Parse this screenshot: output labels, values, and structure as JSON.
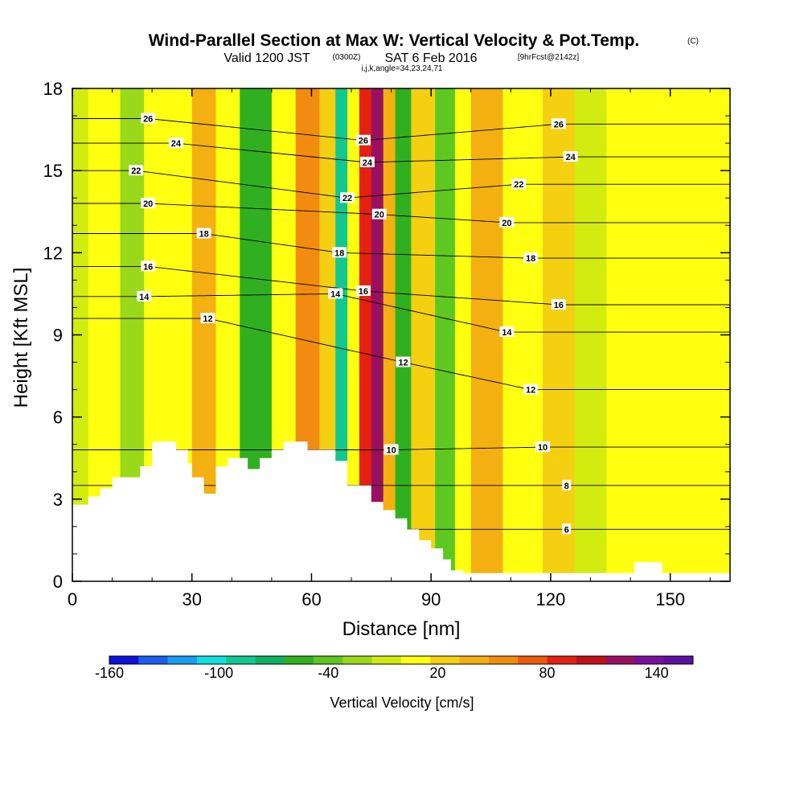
{
  "chart_data": {
    "type": "heatmap",
    "title": "Wind-Parallel Section at Max W: Vertical Velocity & Pot.Temp.",
    "title_mark": "(C)",
    "subtitle_valid": "Valid 1200 JST",
    "subtitle_utc": "(0300Z)",
    "subtitle_date": "SAT 6 Feb 2016",
    "subtitle_fcst": "[9hrFcst@2142z]",
    "subtitle_indices": "i,j,k,angle=34,23,24,71",
    "xlabel": "Distance [nm]",
    "ylabel": "Height [Kft MSL]",
    "xlim": [
      0,
      165
    ],
    "ylim": [
      0,
      18
    ],
    "x_ticks": [
      0,
      30,
      60,
      90,
      120,
      150
    ],
    "y_ticks": [
      0,
      3,
      6,
      9,
      12,
      15,
      18
    ],
    "colorbar": {
      "title": "Vertical Velocity [cm/s]",
      "tick_labels": [
        "-160",
        "-100",
        "-40",
        "20",
        "80",
        "140"
      ],
      "tick_values": [
        -160,
        -100,
        -40,
        20,
        80,
        140
      ],
      "range": [
        -160,
        160
      ],
      "colors": [
        "#1010e0",
        "#1a5cf0",
        "#1a9cf0",
        "#10e0e0",
        "#10c890",
        "#10b060",
        "#30b020",
        "#5ec820",
        "#9ad81a",
        "#d2ec10",
        "#ffff10",
        "#f4d010",
        "#f4b010",
        "#f28c10",
        "#ee5a10",
        "#e42010",
        "#c01018",
        "#9a1060",
        "#7a10a0",
        "#5a10a0"
      ]
    },
    "field_bands": [
      {
        "x": 0,
        "w": 4,
        "v": -10
      },
      {
        "x": 4,
        "w": 8,
        "v": 0
      },
      {
        "x": 12,
        "w": 6,
        "v": -30
      },
      {
        "x": 18,
        "w": 12,
        "v": 5
      },
      {
        "x": 30,
        "w": 6,
        "v": 45
      },
      {
        "x": 36,
        "w": 6,
        "v": 5
      },
      {
        "x": 42,
        "w": 8,
        "v": -50
      },
      {
        "x": 50,
        "w": 6,
        "v": 15
      },
      {
        "x": 56,
        "w": 6,
        "v": 55
      },
      {
        "x": 62,
        "w": 4,
        "v": 25
      },
      {
        "x": 66,
        "w": 3,
        "v": -85
      },
      {
        "x": 69,
        "w": 3,
        "v": 15
      },
      {
        "x": 72,
        "w": 3,
        "v": 95
      },
      {
        "x": 75,
        "w": 3,
        "v": 125
      },
      {
        "x": 78,
        "w": 3,
        "v": 45
      },
      {
        "x": 81,
        "w": 4,
        "v": -55
      },
      {
        "x": 85,
        "w": 6,
        "v": 20
      },
      {
        "x": 91,
        "w": 5,
        "v": -35
      },
      {
        "x": 96,
        "w": 4,
        "v": 10
      },
      {
        "x": 100,
        "w": 8,
        "v": 45
      },
      {
        "x": 108,
        "w": 10,
        "v": 0
      },
      {
        "x": 118,
        "w": 8,
        "v": 30
      },
      {
        "x": 126,
        "w": 8,
        "v": -10
      },
      {
        "x": 134,
        "w": 31,
        "v": 15
      }
    ],
    "terrain": [
      [
        0,
        2.8
      ],
      [
        4,
        2.8
      ],
      [
        4,
        3.1
      ],
      [
        7,
        3.1
      ],
      [
        7,
        3.4
      ],
      [
        10,
        3.4
      ],
      [
        10,
        3.8
      ],
      [
        17,
        3.8
      ],
      [
        17,
        4.2
      ],
      [
        20,
        4.2
      ],
      [
        20,
        5.1
      ],
      [
        26,
        5.1
      ],
      [
        26,
        4.8
      ],
      [
        29,
        4.8
      ],
      [
        29,
        4.3
      ],
      [
        30,
        4.3
      ],
      [
        30,
        3.8
      ],
      [
        33,
        3.8
      ],
      [
        33,
        3.2
      ],
      [
        36,
        3.2
      ],
      [
        36,
        4.2
      ],
      [
        39,
        4.2
      ],
      [
        39,
        4.5
      ],
      [
        44,
        4.5
      ],
      [
        44,
        4.1
      ],
      [
        47,
        4.1
      ],
      [
        47,
        4.5
      ],
      [
        50,
        4.5
      ],
      [
        50,
        4.8
      ],
      [
        53,
        4.8
      ],
      [
        53,
        5.1
      ],
      [
        59,
        5.1
      ],
      [
        59,
        4.8
      ],
      [
        66,
        4.8
      ],
      [
        66,
        4.4
      ],
      [
        69,
        4.4
      ],
      [
        69,
        3.5
      ],
      [
        75,
        3.5
      ],
      [
        75,
        2.9
      ],
      [
        78,
        2.9
      ],
      [
        78,
        2.6
      ],
      [
        81,
        2.6
      ],
      [
        81,
        2.3
      ],
      [
        84,
        2.3
      ],
      [
        84,
        1.9
      ],
      [
        87,
        1.9
      ],
      [
        87,
        1.5
      ],
      [
        90,
        1.5
      ],
      [
        90,
        1.2
      ],
      [
        93,
        1.2
      ],
      [
        93,
        0.8
      ],
      [
        95,
        0.8
      ],
      [
        95,
        0.4
      ],
      [
        98,
        0.4
      ],
      [
        98,
        0.3
      ],
      [
        141,
        0.3
      ],
      [
        141,
        0.7
      ],
      [
        148,
        0.7
      ],
      [
        148,
        0.3
      ],
      [
        165,
        0.3
      ]
    ],
    "pot_temp_contour_labels": [
      {
        "text": "26",
        "x": 19,
        "y": 16.9
      },
      {
        "text": "24",
        "x": 26,
        "y": 16.0
      },
      {
        "text": "22",
        "x": 16,
        "y": 15.0
      },
      {
        "text": "20",
        "x": 19,
        "y": 13.8
      },
      {
        "text": "18",
        "x": 33,
        "y": 12.7
      },
      {
        "text": "16",
        "x": 19,
        "y": 11.5
      },
      {
        "text": "14",
        "x": 18,
        "y": 10.4
      },
      {
        "text": "12",
        "x": 34,
        "y": 9.6
      },
      {
        "text": "26",
        "x": 73,
        "y": 16.1
      },
      {
        "text": "24",
        "x": 74,
        "y": 15.3
      },
      {
        "text": "22",
        "x": 69,
        "y": 14.0
      },
      {
        "text": "20",
        "x": 77,
        "y": 13.4
      },
      {
        "text": "18",
        "x": 67,
        "y": 12.0
      },
      {
        "text": "14",
        "x": 66,
        "y": 10.5
      },
      {
        "text": "16",
        "x": 73,
        "y": 10.6
      },
      {
        "text": "12",
        "x": 83,
        "y": 8.0
      },
      {
        "text": "10",
        "x": 80,
        "y": 4.8
      },
      {
        "text": "26",
        "x": 122,
        "y": 16.7
      },
      {
        "text": "24",
        "x": 125,
        "y": 15.5
      },
      {
        "text": "22",
        "x": 112,
        "y": 14.5
      },
      {
        "text": "20",
        "x": 109,
        "y": 13.1
      },
      {
        "text": "18",
        "x": 115,
        "y": 11.8
      },
      {
        "text": "16",
        "x": 122,
        "y": 10.1
      },
      {
        "text": "14",
        "x": 109,
        "y": 9.1
      },
      {
        "text": "12",
        "x": 115,
        "y": 7.0
      },
      {
        "text": "10",
        "x": 118,
        "y": 4.9
      },
      {
        "text": "8",
        "x": 124,
        "y": 3.5
      },
      {
        "text": "6",
        "x": 124,
        "y": 1.9
      }
    ]
  }
}
